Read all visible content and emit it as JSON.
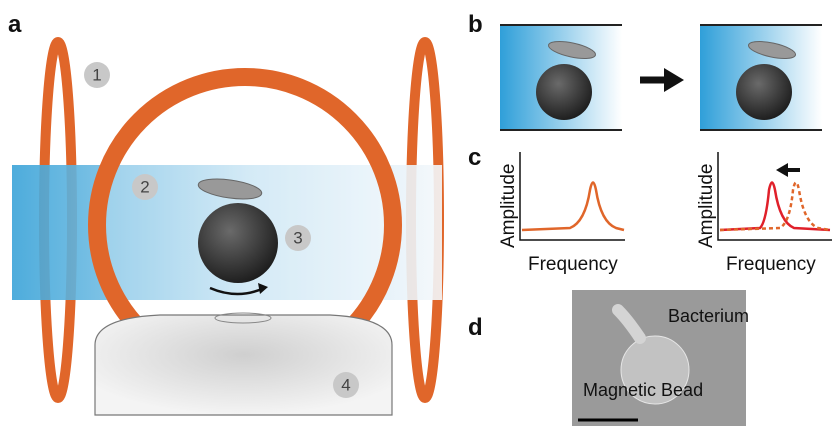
{
  "panels": {
    "a": {
      "label": "a",
      "markers": [
        "1",
        "2",
        "3",
        "4"
      ]
    },
    "b": {
      "label": "b"
    },
    "c": {
      "label": "c",
      "plots": [
        {
          "y_label": "Amplitude",
          "x_label": "Frequency"
        },
        {
          "y_label": "Amplitude",
          "x_label": "Frequency"
        }
      ]
    },
    "d": {
      "label": "d",
      "annotations": [
        "Bacterium",
        "Magnetic Bead"
      ]
    }
  }
}
